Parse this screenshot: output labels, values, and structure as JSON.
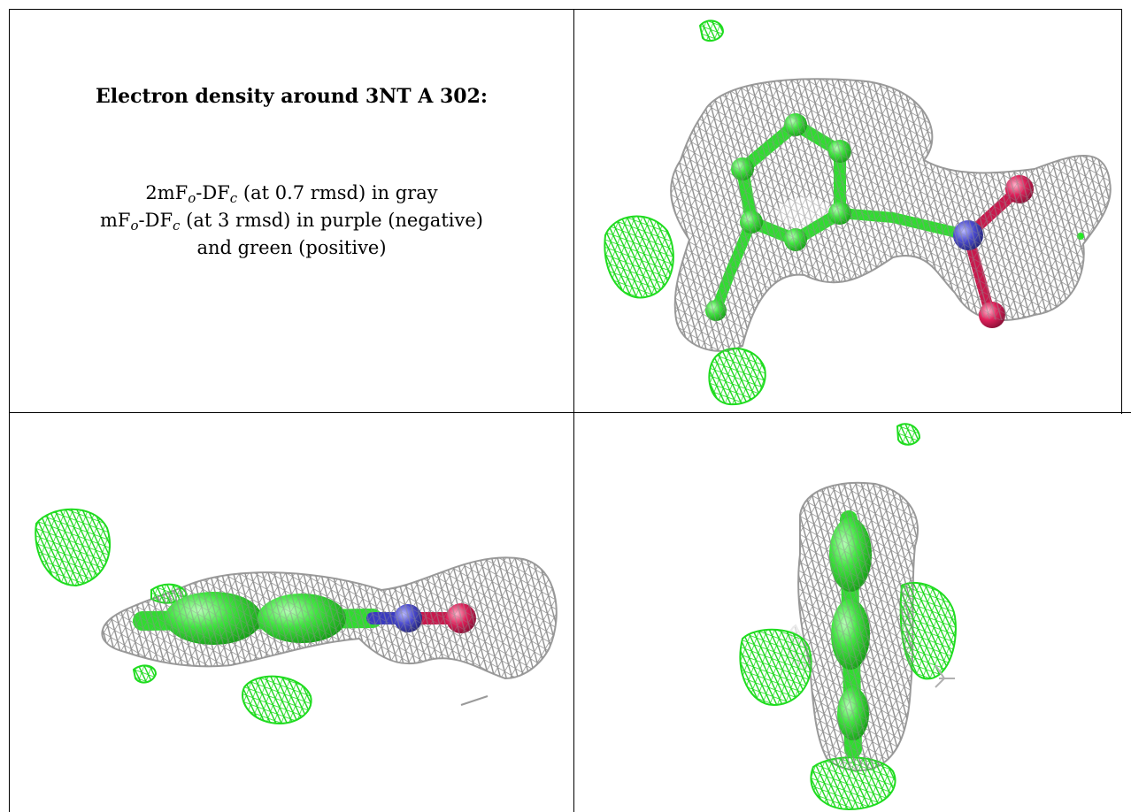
{
  "title": "Electron density around 3NT A 302:",
  "legend": {
    "line1_a": "2mF",
    "line1_sub1": "o",
    "line1_b": "-DF",
    "line1_sub2": "c",
    "line1_c": " (at 0.7 rmsd) in gray",
    "line2_a": "mF",
    "line2_sub1": "o",
    "line2_b": "-DF",
    "line2_sub2": "c",
    "line2_c": " (at 3 rmsd) in purple (negative)",
    "line3": "and green (positive)"
  },
  "colors": {
    "mesh_2fofc": "#a9a9a9",
    "mesh_positive": "#22ee22",
    "carbon": "#39e639",
    "nitrogen": "#4a4ad0",
    "oxygen": "#e0205a",
    "border": "#000000"
  }
}
